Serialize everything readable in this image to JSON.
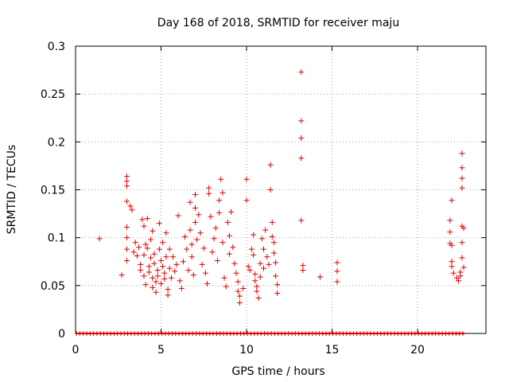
{
  "chart_data": {
    "type": "scatter",
    "title": "Day 168 of 2018, SRMTID for receiver maju",
    "xlabel": "GPS time / hours",
    "ylabel": "SRMTID / TECUs",
    "xlim": [
      0,
      24
    ],
    "ylim": [
      0,
      0.3
    ],
    "xticks": [
      0,
      5,
      10,
      15,
      20
    ],
    "yticks": [
      0,
      0.05,
      0.1,
      0.15,
      0.2,
      0.25,
      0.3
    ],
    "ytick_labels": [
      "0",
      "0.05",
      "0.1",
      "0.15",
      "0.2",
      "0.25",
      "0.3"
    ],
    "grid": true,
    "marker": "+",
    "color": "#e00000",
    "series": [
      {
        "name": "SRMTID",
        "points": [
          [
            1.4,
            0.099
          ],
          [
            2.7,
            0.061
          ],
          [
            3.0,
            0.164
          ],
          [
            3.0,
            0.159
          ],
          [
            3.0,
            0.154
          ],
          [
            3.0,
            0.138
          ],
          [
            3.0,
            0.111
          ],
          [
            3.0,
            0.1
          ],
          [
            3.0,
            0.088
          ],
          [
            3.0,
            0.076
          ],
          [
            3.2,
            0.133
          ],
          [
            3.3,
            0.129
          ],
          [
            3.4,
            0.085
          ],
          [
            3.5,
            0.095
          ],
          [
            3.6,
            0.081
          ],
          [
            3.7,
            0.09
          ],
          [
            3.8,
            0.072
          ],
          [
            3.8,
            0.066
          ],
          [
            3.9,
            0.119
          ],
          [
            4.0,
            0.112
          ],
          [
            4.0,
            0.082
          ],
          [
            4.0,
            0.06
          ],
          [
            4.1,
            0.051
          ],
          [
            4.1,
            0.093
          ],
          [
            4.2,
            0.12
          ],
          [
            4.2,
            0.089
          ],
          [
            4.3,
            0.07
          ],
          [
            4.3,
            0.064
          ],
          [
            4.4,
            0.098
          ],
          [
            4.4,
            0.079
          ],
          [
            4.5,
            0.107
          ],
          [
            4.5,
            0.058
          ],
          [
            4.5,
            0.048
          ],
          [
            4.6,
            0.083
          ],
          [
            4.6,
            0.073
          ],
          [
            4.7,
            0.054
          ],
          [
            4.7,
            0.043
          ],
          [
            4.8,
            0.066
          ],
          [
            4.8,
            0.06
          ],
          [
            4.9,
            0.115
          ],
          [
            4.9,
            0.088
          ],
          [
            5.0,
            0.076
          ],
          [
            5.0,
            0.052
          ],
          [
            5.1,
            0.095
          ],
          [
            5.1,
            0.07
          ],
          [
            5.2,
            0.063
          ],
          [
            5.2,
            0.057
          ],
          [
            5.3,
            0.105
          ],
          [
            5.3,
            0.08
          ],
          [
            5.4,
            0.046
          ],
          [
            5.4,
            0.04
          ],
          [
            5.5,
            0.088
          ],
          [
            5.5,
            0.068
          ],
          [
            5.6,
            0.058
          ],
          [
            5.7,
            0.08
          ],
          [
            5.8,
            0.065
          ],
          [
            5.9,
            0.072
          ],
          [
            6.0,
            0.123
          ],
          [
            6.1,
            0.055
          ],
          [
            6.2,
            0.047
          ],
          [
            6.3,
            0.075
          ],
          [
            6.4,
            0.101
          ],
          [
            6.5,
            0.088
          ],
          [
            6.6,
            0.066
          ],
          [
            6.7,
            0.137
          ],
          [
            6.7,
            0.108
          ],
          [
            6.8,
            0.093
          ],
          [
            6.8,
            0.08
          ],
          [
            6.9,
            0.061
          ],
          [
            7.0,
            0.131
          ],
          [
            7.0,
            0.116
          ],
          [
            7.0,
            0.145
          ],
          [
            7.1,
            0.098
          ],
          [
            7.2,
            0.124
          ],
          [
            7.3,
            0.105
          ],
          [
            7.4,
            0.072
          ],
          [
            7.5,
            0.089
          ],
          [
            7.6,
            0.063
          ],
          [
            7.7,
            0.052
          ],
          [
            7.8,
            0.152
          ],
          [
            7.8,
            0.146
          ],
          [
            7.9,
            0.122
          ],
          [
            8.0,
            0.085
          ],
          [
            8.1,
            0.099
          ],
          [
            8.2,
            0.11
          ],
          [
            8.3,
            0.076
          ],
          [
            8.4,
            0.139
          ],
          [
            8.4,
            0.126
          ],
          [
            8.5,
            0.161
          ],
          [
            8.6,
            0.147
          ],
          [
            8.6,
            0.095
          ],
          [
            8.7,
            0.058
          ],
          [
            8.8,
            0.049
          ],
          [
            8.9,
            0.116
          ],
          [
            9.0,
            0.102
          ],
          [
            9.0,
            0.083
          ],
          [
            9.1,
            0.127
          ],
          [
            9.2,
            0.09
          ],
          [
            9.3,
            0.073
          ],
          [
            9.4,
            0.063
          ],
          [
            9.5,
            0.054
          ],
          [
            9.5,
            0.044
          ],
          [
            9.6,
            0.039
          ],
          [
            9.6,
            0.032
          ],
          [
            9.8,
            0.047
          ],
          [
            10.0,
            0.161
          ],
          [
            10.0,
            0.139
          ],
          [
            10.1,
            0.07
          ],
          [
            10.2,
            0.066
          ],
          [
            10.3,
            0.088
          ],
          [
            10.4,
            0.103
          ],
          [
            10.4,
            0.082
          ],
          [
            10.5,
            0.062
          ],
          [
            10.5,
            0.055
          ],
          [
            10.6,
            0.049
          ],
          [
            10.6,
            0.044
          ],
          [
            10.7,
            0.037
          ],
          [
            10.8,
            0.073
          ],
          [
            10.8,
            0.059
          ],
          [
            10.9,
            0.099
          ],
          [
            11.0,
            0.088
          ],
          [
            11.0,
            0.068
          ],
          [
            11.1,
            0.108
          ],
          [
            11.2,
            0.08
          ],
          [
            11.3,
            0.072
          ],
          [
            11.4,
            0.176
          ],
          [
            11.4,
            0.15
          ],
          [
            11.5,
            0.116
          ],
          [
            11.5,
            0.101
          ],
          [
            11.6,
            0.095
          ],
          [
            11.6,
            0.084
          ],
          [
            11.7,
            0.074
          ],
          [
            11.7,
            0.06
          ],
          [
            11.8,
            0.051
          ],
          [
            11.8,
            0.042
          ],
          [
            13.2,
            0.273
          ],
          [
            13.2,
            0.222
          ],
          [
            13.2,
            0.204
          ],
          [
            13.2,
            0.183
          ],
          [
            13.2,
            0.118
          ],
          [
            13.3,
            0.071
          ],
          [
            13.3,
            0.066
          ],
          [
            14.3,
            0.059
          ],
          [
            15.3,
            0.074
          ],
          [
            15.3,
            0.065
          ],
          [
            15.3,
            0.054
          ],
          [
            21.9,
            0.118
          ],
          [
            21.9,
            0.106
          ],
          [
            21.9,
            0.094
          ],
          [
            22.0,
            0.092
          ],
          [
            22.0,
            0.075
          ],
          [
            22.0,
            0.07
          ],
          [
            22.0,
            0.139
          ],
          [
            22.1,
            0.063
          ],
          [
            22.3,
            0.058
          ],
          [
            22.4,
            0.055
          ],
          [
            22.5,
            0.06
          ],
          [
            22.5,
            0.064
          ],
          [
            22.6,
            0.188
          ],
          [
            22.6,
            0.173
          ],
          [
            22.6,
            0.162
          ],
          [
            22.6,
            0.152
          ],
          [
            22.6,
            0.112
          ],
          [
            22.6,
            0.095
          ],
          [
            22.6,
            0.079
          ],
          [
            22.7,
            0.11
          ],
          [
            22.7,
            0.069
          ]
        ]
      }
    ]
  }
}
